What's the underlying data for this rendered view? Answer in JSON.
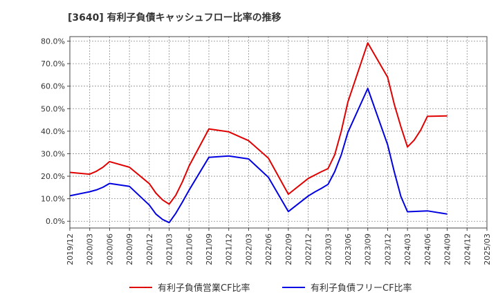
{
  "chart_data": {
    "type": "line",
    "title": "[3640]  有利子負債キャッシュフロー比率の推移",
    "xlabel": "",
    "ylabel": "",
    "ylim": [
      -0.03,
      0.82
    ],
    "y_ticks": [
      0.0,
      0.1,
      0.2,
      0.3,
      0.4,
      0.5,
      0.6,
      0.7,
      0.8
    ],
    "y_tick_labels": [
      "0.0%",
      "10.0%",
      "20.0%",
      "30.0%",
      "40.0%",
      "50.0%",
      "60.0%",
      "70.0%",
      "80.0%"
    ],
    "x_ticks": [
      "2019/12",
      "2020/03",
      "2020/06",
      "2020/09",
      "2020/12",
      "2021/03",
      "2021/06",
      "2021/09",
      "2021/12",
      "2022/03",
      "2022/06",
      "2022/09",
      "2022/12",
      "2023/03",
      "2023/06",
      "2023/09",
      "2023/12",
      "2024/03",
      "2024/06",
      "2024/09",
      "2024/12",
      "2025/03"
    ],
    "grid": true,
    "legend_position": "bottom",
    "series": [
      {
        "name": "有利子負債営業CF比率",
        "color": "#e00000",
        "points": [
          [
            "2019/12",
            0.217
          ],
          [
            "2020/03",
            0.209
          ],
          [
            "2020/04",
            0.222
          ],
          [
            "2020/05",
            0.24
          ],
          [
            "2020/06",
            0.265
          ],
          [
            "2020/09",
            0.24
          ],
          [
            "2020/12",
            0.167
          ],
          [
            "2021/01",
            0.125
          ],
          [
            "2021/02",
            0.095
          ],
          [
            "2021/03",
            0.076
          ],
          [
            "2021/04",
            0.115
          ],
          [
            "2021/05",
            0.175
          ],
          [
            "2021/06",
            0.245
          ],
          [
            "2021/09",
            0.41
          ],
          [
            "2021/12",
            0.397
          ],
          [
            "2022/03",
            0.358
          ],
          [
            "2022/06",
            0.28
          ],
          [
            "2022/09",
            0.12
          ],
          [
            "2022/12",
            0.19
          ],
          [
            "2023/01",
            0.205
          ],
          [
            "2023/02",
            0.22
          ],
          [
            "2023/03",
            0.234
          ],
          [
            "2023/04",
            0.295
          ],
          [
            "2023/05",
            0.4
          ],
          [
            "2023/06",
            0.53
          ],
          [
            "2023/09",
            0.792
          ],
          [
            "2023/12",
            0.64
          ],
          [
            "2024/01",
            0.52
          ],
          [
            "2024/02",
            0.42
          ],
          [
            "2024/03",
            0.33
          ],
          [
            "2024/04",
            0.36
          ],
          [
            "2024/05",
            0.405
          ],
          [
            "2024/06",
            0.466
          ],
          [
            "2024/09",
            0.468
          ]
        ]
      },
      {
        "name": "有利子負債フリーCF比率",
        "color": "#0000e0",
        "points": [
          [
            "2019/12",
            0.113
          ],
          [
            "2020/03",
            0.131
          ],
          [
            "2020/04",
            0.139
          ],
          [
            "2020/05",
            0.151
          ],
          [
            "2020/06",
            0.168
          ],
          [
            "2020/09",
            0.155
          ],
          [
            "2020/12",
            0.072
          ],
          [
            "2021/01",
            0.032
          ],
          [
            "2021/02",
            0.008
          ],
          [
            "2021/03",
            -0.006
          ],
          [
            "2021/04",
            0.035
          ],
          [
            "2021/05",
            0.085
          ],
          [
            "2021/06",
            0.138
          ],
          [
            "2021/09",
            0.284
          ],
          [
            "2021/12",
            0.29
          ],
          [
            "2022/03",
            0.277
          ],
          [
            "2022/06",
            0.195
          ],
          [
            "2022/09",
            0.043
          ],
          [
            "2022/12",
            0.112
          ],
          [
            "2023/01",
            0.13
          ],
          [
            "2023/02",
            0.146
          ],
          [
            "2023/03",
            0.164
          ],
          [
            "2023/04",
            0.22
          ],
          [
            "2023/05",
            0.295
          ],
          [
            "2023/06",
            0.395
          ],
          [
            "2023/09",
            0.59
          ],
          [
            "2023/12",
            0.34
          ],
          [
            "2024/01",
            0.22
          ],
          [
            "2024/02",
            0.11
          ],
          [
            "2024/03",
            0.042
          ],
          [
            "2024/06",
            0.046
          ],
          [
            "2024/09",
            0.032
          ]
        ]
      }
    ]
  }
}
